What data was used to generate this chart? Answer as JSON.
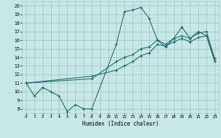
{
  "xlabel": "Humidex (Indice chaleur)",
  "xlim": [
    -0.5,
    23.5
  ],
  "ylim": [
    7.5,
    20.5
  ],
  "yticks": [
    8,
    9,
    10,
    11,
    12,
    13,
    14,
    15,
    16,
    17,
    18,
    19,
    20
  ],
  "xticks": [
    0,
    1,
    2,
    3,
    4,
    5,
    6,
    7,
    8,
    9,
    10,
    11,
    12,
    13,
    14,
    15,
    16,
    17,
    18,
    19,
    20,
    21,
    22,
    23
  ],
  "bg_color": "#c8e8e8",
  "grid_color": "#a0c8c8",
  "line_color": "#1a6b6b",
  "line1_x": [
    0,
    1,
    2,
    3,
    4,
    5,
    6,
    7,
    8,
    11,
    12,
    13,
    14,
    15,
    16,
    17,
    18,
    19,
    20,
    21,
    22,
    23
  ],
  "line1_y": [
    11.0,
    9.5,
    10.5,
    10.0,
    9.5,
    7.7,
    8.5,
    8.0,
    8.0,
    15.5,
    19.3,
    19.5,
    19.8,
    18.5,
    16.0,
    15.2,
    16.2,
    17.5,
    16.2,
    17.0,
    16.5,
    13.8
  ],
  "line2_x": [
    0,
    8,
    11,
    12,
    13,
    14,
    15,
    16,
    17,
    18,
    19,
    20,
    21,
    22,
    23
  ],
  "line2_y": [
    11.0,
    11.5,
    13.5,
    14.0,
    14.3,
    15.0,
    15.2,
    16.0,
    15.5,
    16.2,
    16.5,
    16.2,
    16.8,
    17.0,
    13.8
  ],
  "line3_x": [
    0,
    8,
    11,
    12,
    13,
    14,
    15,
    16,
    17,
    18,
    19,
    20,
    21,
    22,
    23
  ],
  "line3_y": [
    11.0,
    11.8,
    12.5,
    13.0,
    13.5,
    14.2,
    14.5,
    15.5,
    15.3,
    15.8,
    16.2,
    15.8,
    16.3,
    16.5,
    13.5
  ]
}
